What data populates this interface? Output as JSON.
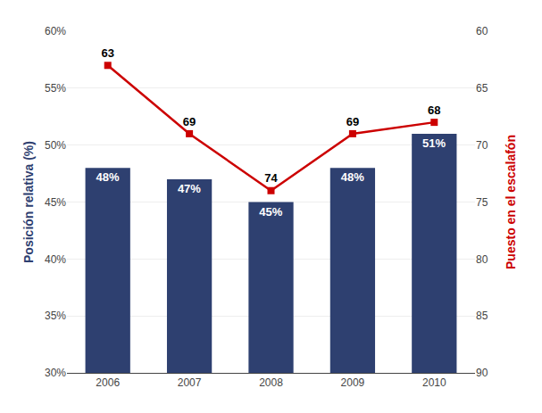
{
  "chart_data": {
    "type": "bar",
    "categories": [
      "2006",
      "2007",
      "2008",
      "2009",
      "2010"
    ],
    "series": [
      {
        "type": "bar",
        "color": "#2e4070",
        "values": [
          48,
          47,
          45,
          48,
          51
        ],
        "value_labels": [
          "48%",
          "47%",
          "45%",
          "48%",
          "51%"
        ]
      },
      {
        "type": "line",
        "axis": "y2",
        "color": "#CC0000",
        "marker": "square",
        "values": [
          63,
          69,
          74,
          69,
          68
        ]
      }
    ],
    "data_labels": true,
    "ylabel": "Posición relativa (%)",
    "y2label": "Puesto en el escalafón",
    "ylim": [
      30,
      60
    ],
    "yticks": [
      {
        "value": 30,
        "label": "30%"
      },
      {
        "value": 35,
        "label": "35%"
      },
      {
        "value": 40,
        "label": "40%"
      },
      {
        "value": 45,
        "label": "45%"
      },
      {
        "value": 50,
        "label": "50%"
      },
      {
        "value": 55,
        "label": "55%"
      },
      {
        "value": 60,
        "label": "60%"
      }
    ],
    "y2lim": [
      90,
      60
    ],
    "y2ticks": [
      60,
      65,
      70,
      75,
      80,
      85,
      90
    ],
    "grid": true
  }
}
